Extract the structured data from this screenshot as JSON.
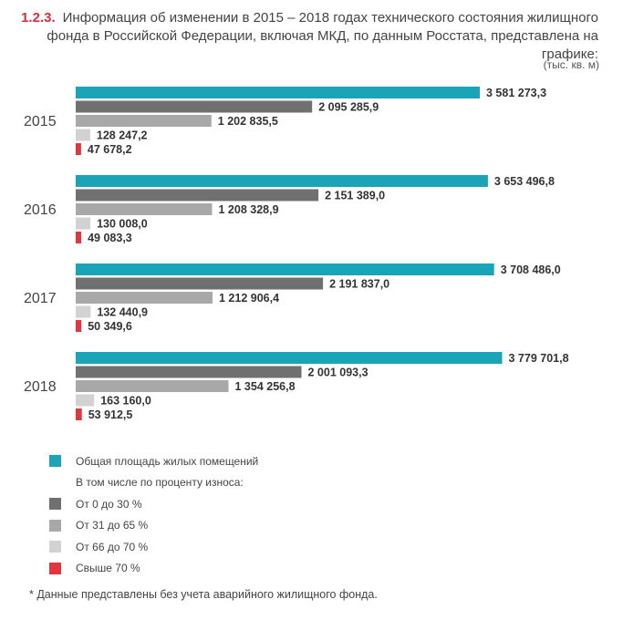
{
  "header": {
    "number": "1.2.3.",
    "text": "Информация об изменении в 2015 – 2018 годах технического состояния жилищного фонда в Российской Федерации, включая МКД, по данным Росстата, представлена на графике:"
  },
  "unit_label": "(тыс. кв. м)",
  "legend": {
    "note": "В том числе по проценту износа:"
  },
  "footnote": "* Данные представлены без учета аварийного жилищного фонда.",
  "chart_data": {
    "type": "bar",
    "orientation": "horizontal",
    "categories": [
      "2015",
      "2016",
      "2017",
      "2018"
    ],
    "series": [
      {
        "name": "Общая площадь жилых помещений",
        "color": "#1ba4b8",
        "values": [
          3581273.3,
          3653496.8,
          3708486.0,
          3779701.8
        ],
        "labels": [
          "3 581 273,3",
          "3 653 496,8",
          "3 708 486,0",
          "3 779 701,8"
        ]
      },
      {
        "name": "От 0 до 30 %",
        "color": "#707070",
        "values": [
          2095285.9,
          2151389.0,
          2191837.0,
          2001093.3
        ],
        "labels": [
          "2 095 285,9",
          "2 151 389,0",
          "2 191 837,0",
          "2 001 093,3"
        ]
      },
      {
        "name": "От 31 до 65 %",
        "color": "#a8a8a8",
        "values": [
          1202835.5,
          1208328.9,
          1212906.4,
          1354256.8
        ],
        "labels": [
          "1 202 835,5",
          "1 208 328,9",
          "1 212 906,4",
          "1 354 256,8"
        ]
      },
      {
        "name": "От 66 до 70 %",
        "color": "#d2d2d2",
        "values": [
          128247.2,
          130008.0,
          132440.9,
          163160.0
        ],
        "labels": [
          "128 247,2",
          "130 008,0",
          "132 440,9",
          "163 160,0"
        ]
      },
      {
        "name": "Свыше 70 %",
        "color": "#e2363e",
        "values": [
          47678.2,
          49083.3,
          50349.6,
          53912.5
        ],
        "labels": [
          "47 678,2",
          "49 083,3",
          "50 349,6",
          "53 912,5"
        ]
      }
    ]
  }
}
